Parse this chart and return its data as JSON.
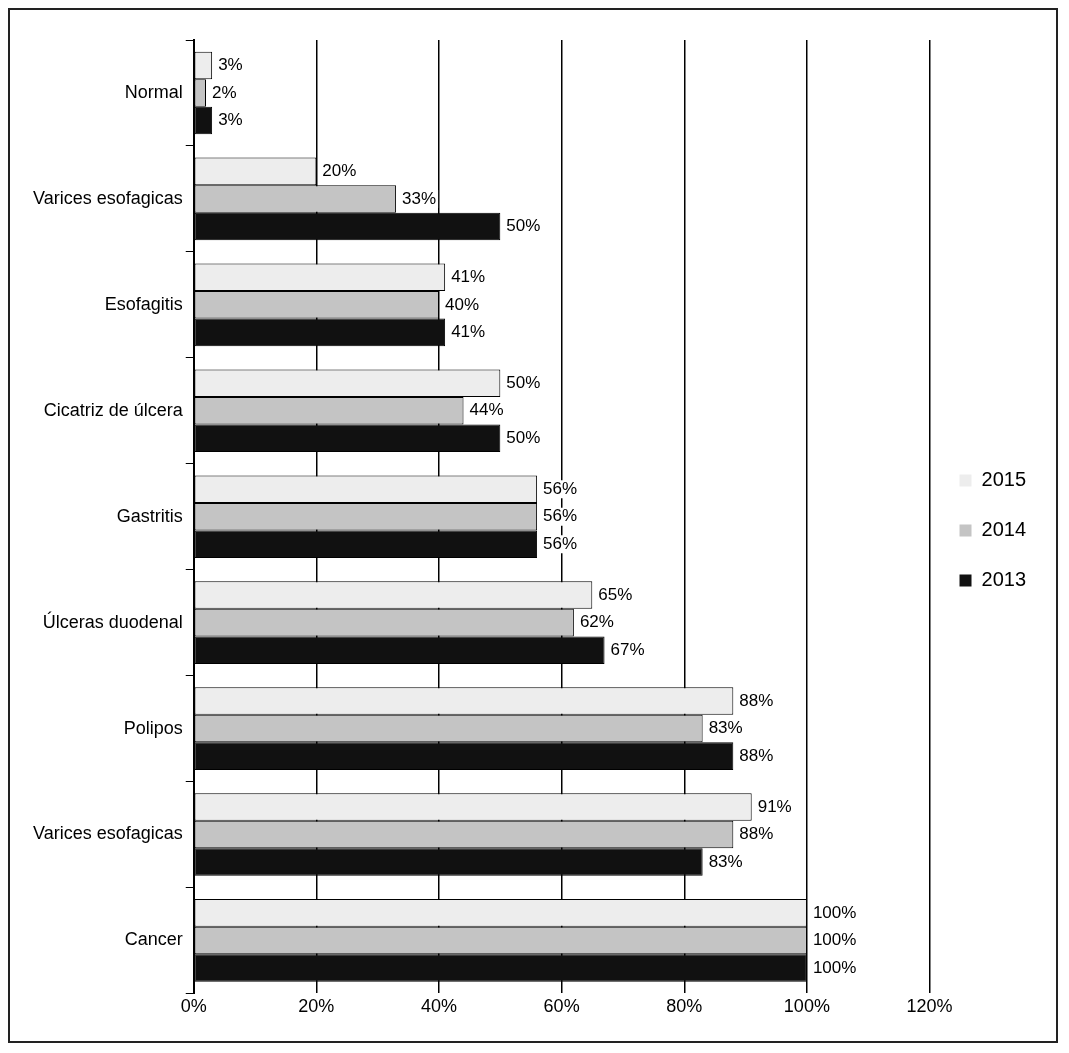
{
  "chart_data": {
    "type": "bar",
    "orientation": "horizontal",
    "categories": [
      "Normal",
      "Varices esofagicas",
      "Esofagitis",
      "Cicatriz de úlcera",
      "Gastritis",
      "Úlceras duodenal",
      "Polipos",
      "Varices esofagicas",
      "Cancer"
    ],
    "series": [
      {
        "name": "2015",
        "color": "#ededed",
        "values": [
          3,
          20,
          41,
          50,
          56,
          65,
          88,
          91,
          100
        ],
        "value_labels": [
          "3%",
          "20%",
          "41%",
          "50%",
          "56%",
          "65%",
          "88%",
          "91%",
          "100%"
        ]
      },
      {
        "name": "2014",
        "color": "#c4c4c4",
        "values": [
          2,
          33,
          40,
          44,
          56,
          62,
          83,
          88,
          100
        ],
        "value_labels": [
          "2%",
          "33%",
          "40%",
          "44%",
          "56%",
          "62%",
          "83%",
          "88%",
          "100%"
        ]
      },
      {
        "name": "2013",
        "color": "#111111",
        "values": [
          3,
          50,
          41,
          50,
          56,
          67,
          88,
          83,
          100
        ],
        "value_labels": [
          "3%",
          "50%",
          "41%",
          "50%",
          "56%",
          "67%",
          "88%",
          "83%",
          "100%"
        ]
      }
    ],
    "xlim": [
      0,
      120
    ],
    "xticks": [
      {
        "value": 0,
        "label": "0%"
      },
      {
        "value": 20,
        "label": "20%"
      },
      {
        "value": 40,
        "label": "40%"
      },
      {
        "value": 60,
        "label": "60%"
      },
      {
        "value": 80,
        "label": "80%"
      },
      {
        "value": 100,
        "label": "100%"
      },
      {
        "value": 120,
        "label": "120%"
      }
    ],
    "grid": "x",
    "legend": "right"
  }
}
